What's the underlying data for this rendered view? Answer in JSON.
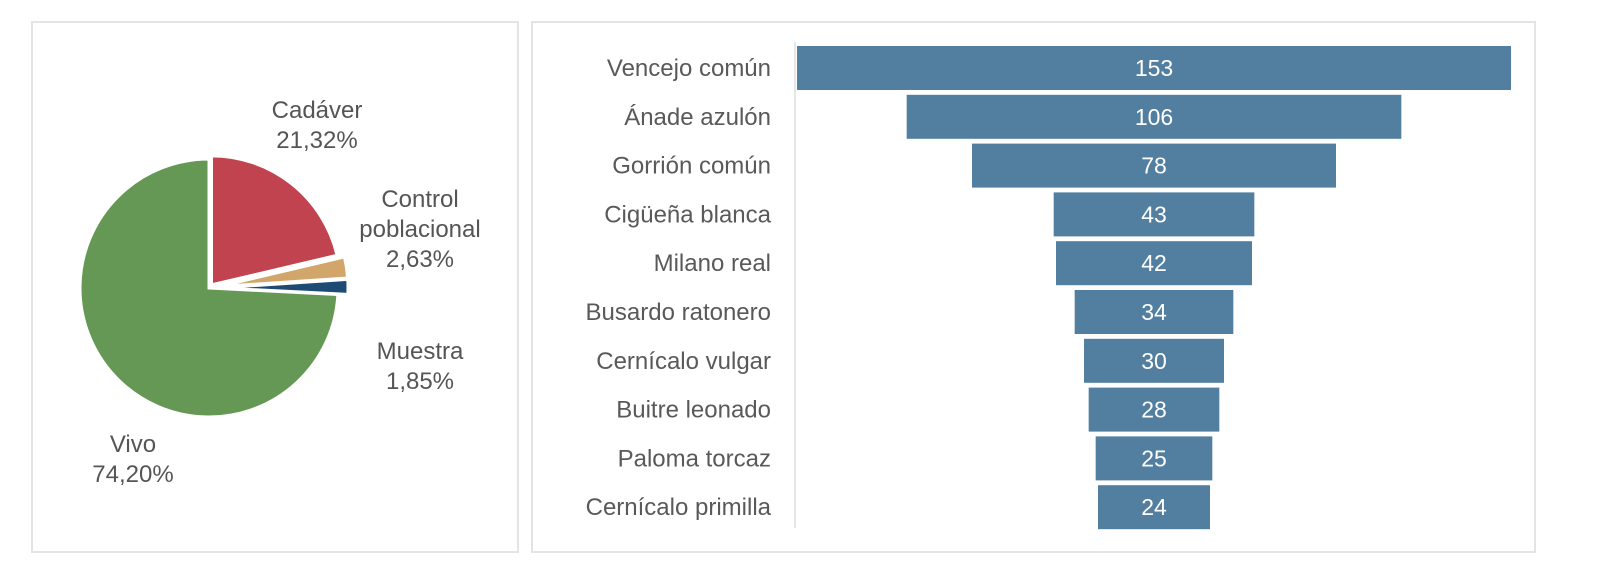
{
  "pie_chart": {
    "slices": [
      {
        "label": "Cadáver",
        "percent_text": "21,32%",
        "value": 21.32,
        "color": "#c0434f"
      },
      {
        "label": "Control poblacional",
        "label_lines": [
          "Control",
          "poblacional"
        ],
        "percent_text": "2,63%",
        "value": 2.63,
        "color": "#d2a56a"
      },
      {
        "label": "Muestra",
        "percent_text": "1,85%",
        "value": 1.85,
        "color": "#1d4b74"
      },
      {
        "label": "Vivo",
        "percent_text": "74,20%",
        "value": 74.2,
        "color": "#669855"
      }
    ]
  },
  "funnel_chart": {
    "bar_color": "#527fa0",
    "categories": [
      "Vencejo común",
      "Ánade azulón",
      "Gorrión común",
      "Cigüeña blanca",
      "Milano real",
      "Busardo ratonero",
      "Cernícalo vulgar",
      "Buitre leonado",
      "Paloma torcaz",
      "Cernícalo primilla"
    ],
    "values": [
      153,
      106,
      78,
      43,
      42,
      34,
      30,
      28,
      25,
      24
    ]
  },
  "chart_data": [
    {
      "type": "pie",
      "title": "",
      "categories": [
        "Cadáver",
        "Control poblacional",
        "Muestra",
        "Vivo"
      ],
      "values": [
        21.32,
        2.63,
        1.85,
        74.2
      ],
      "value_labels": [
        "21,32%",
        "2,63%",
        "1,85%",
        "74,20%"
      ],
      "colors": [
        "#c0434f",
        "#d2a56a",
        "#1d4b74",
        "#669855"
      ],
      "legend": "none (labels placed beside slices)"
    },
    {
      "type": "bar",
      "subtype": "funnel (centered horizontal bars)",
      "title": "",
      "xlabel": "",
      "ylabel": "",
      "categories": [
        "Vencejo común",
        "Ánade azulón",
        "Gorrión común",
        "Cigüeña blanca",
        "Milano real",
        "Busardo ratonero",
        "Cernícalo vulgar",
        "Buitre leonado",
        "Paloma torcaz",
        "Cernícalo primilla"
      ],
      "values": [
        153,
        106,
        78,
        43,
        42,
        34,
        30,
        28,
        25,
        24
      ],
      "data_labels": true,
      "grid": false,
      "color": "#527fa0"
    }
  ]
}
